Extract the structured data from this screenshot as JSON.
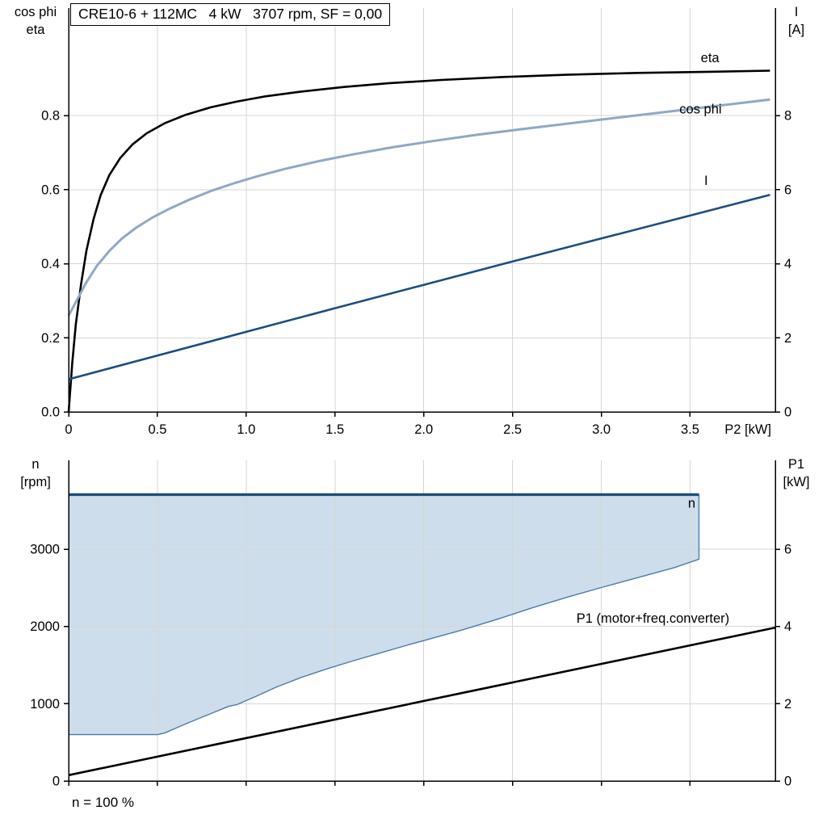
{
  "chart_data": [
    {
      "type": "line",
      "title": "CRE10-6 + 112MC   4 kW   3707 rpm, SF = 0,00",
      "grid": {
        "show": true,
        "color": "#d6d6d6"
      },
      "x_axis": {
        "label": "P2 [kW]",
        "min": 0,
        "max": 3.98,
        "ticks": [
          0,
          0.5,
          1,
          1.5,
          2,
          2.5,
          3,
          3.5
        ],
        "tick_labels": [
          "0",
          "0.5",
          "1.0",
          "1.5",
          "2.0",
          "2.5",
          "3.0",
          "3.5"
        ]
      },
      "y_left": {
        "label_lines": [
          "cos phi",
          "eta"
        ],
        "min": 0,
        "max": 1.09,
        "ticks": [
          0,
          0.2,
          0.4,
          0.6,
          0.8
        ],
        "tick_labels": [
          "0.0",
          "0.2",
          "0.4",
          "0.6",
          "0.8"
        ]
      },
      "y_right": {
        "label_lines": [
          "I",
          "[A]"
        ],
        "min": 0,
        "max": 10.9,
        "ticks": [
          0,
          2,
          4,
          6,
          8
        ],
        "tick_labels": [
          "0",
          "2",
          "4",
          "6",
          "8"
        ]
      },
      "series": [
        {
          "name": "eta",
          "axis": "left",
          "color": "#000000",
          "width": 2.6,
          "points": [
            [
              0,
              0
            ],
            [
              0.02,
              0.13
            ],
            [
              0.04,
              0.235
            ],
            [
              0.07,
              0.345
            ],
            [
              0.1,
              0.435
            ],
            [
              0.14,
              0.52
            ],
            [
              0.18,
              0.585
            ],
            [
              0.23,
              0.64
            ],
            [
              0.29,
              0.685
            ],
            [
              0.36,
              0.722
            ],
            [
              0.44,
              0.752
            ],
            [
              0.54,
              0.779
            ],
            [
              0.66,
              0.802
            ],
            [
              0.8,
              0.822
            ],
            [
              0.95,
              0.838
            ],
            [
              1.1,
              0.851
            ],
            [
              1.3,
              0.864
            ],
            [
              1.55,
              0.877
            ],
            [
              1.8,
              0.887
            ],
            [
              2.1,
              0.896
            ],
            [
              2.45,
              0.904
            ],
            [
              2.8,
              0.91
            ],
            [
              3.2,
              0.915
            ],
            [
              3.6,
              0.918
            ],
            [
              3.95,
              0.921
            ]
          ]
        },
        {
          "name": "cos phi",
          "axis": "left",
          "color": "#8fa9c4",
          "width": 3,
          "points": [
            [
              0,
              0.26
            ],
            [
              0.05,
              0.305
            ],
            [
              0.1,
              0.35
            ],
            [
              0.16,
              0.395
            ],
            [
              0.23,
              0.435
            ],
            [
              0.3,
              0.468
            ],
            [
              0.38,
              0.497
            ],
            [
              0.47,
              0.524
            ],
            [
              0.57,
              0.549
            ],
            [
              0.68,
              0.573
            ],
            [
              0.8,
              0.596
            ],
            [
              0.93,
              0.617
            ],
            [
              1.07,
              0.637
            ],
            [
              1.22,
              0.656
            ],
            [
              1.4,
              0.676
            ],
            [
              1.6,
              0.695
            ],
            [
              1.82,
              0.714
            ],
            [
              2.05,
              0.731
            ],
            [
              2.3,
              0.748
            ],
            [
              2.6,
              0.766
            ],
            [
              2.95,
              0.786
            ],
            [
              3.3,
              0.806
            ],
            [
              3.65,
              0.826
            ],
            [
              3.95,
              0.843
            ]
          ]
        },
        {
          "name": "I",
          "axis": "right",
          "color": "#1b4e7f",
          "width": 2.6,
          "points": [
            [
              0,
              0.88
            ],
            [
              0.5,
              1.52
            ],
            [
              1.0,
              2.16
            ],
            [
              1.5,
              2.8
            ],
            [
              2.0,
              3.43
            ],
            [
              2.5,
              4.06
            ],
            [
              3.0,
              4.68
            ],
            [
              3.5,
              5.3
            ],
            [
              3.95,
              5.86
            ]
          ]
        }
      ],
      "annotations": [
        {
          "text": "eta",
          "x": 3.56,
          "y": 0.944,
          "axis": "left",
          "color": "#000000",
          "anchor": "start"
        },
        {
          "text": "cos phi",
          "x": 3.44,
          "y": 0.806,
          "axis": "left",
          "color": "#8fa9c4",
          "anchor": "start"
        },
        {
          "text": "I",
          "x": 3.58,
          "y": 6.13,
          "axis": "right",
          "color": "#1b4e7f",
          "anchor": "start"
        }
      ]
    },
    {
      "type": "line",
      "footnote": "n = 100 %",
      "grid": {
        "show": true,
        "color": "#d6d6d6"
      },
      "x_axis": {
        "label": "",
        "min": 0,
        "max": 3.98,
        "ticks": [
          0,
          0.5,
          1,
          1.5,
          2,
          2.5,
          3,
          3.5
        ],
        "tick_labels": []
      },
      "y_left": {
        "label_lines": [
          "n",
          "[rpm]"
        ],
        "min": 0,
        "max": 4150,
        "ticks": [
          0,
          1000,
          2000,
          3000
        ],
        "tick_labels": [
          "0",
          "1000",
          "2000",
          "3000"
        ]
      },
      "y_right": {
        "label_lines": [
          "P1",
          "[kW]"
        ],
        "min": 0,
        "max": 8.3,
        "ticks": [
          0,
          2,
          4,
          6
        ],
        "tick_labels": [
          "0",
          "2",
          "4",
          "6"
        ]
      },
      "area": {
        "name": "speed-control-range",
        "fill": "#cdddeb",
        "edge_color": "#4a7cad",
        "upper_value": 3707,
        "x_start": 0,
        "x_end": 3.55,
        "lower_points": [
          [
            0,
            600
          ],
          [
            0.5,
            600
          ],
          [
            0.54,
            620
          ],
          [
            0.64,
            720
          ],
          [
            0.74,
            815
          ],
          [
            0.82,
            890
          ],
          [
            0.9,
            965
          ],
          [
            0.95,
            990
          ],
          [
            1.06,
            1100
          ],
          [
            1.17,
            1215
          ],
          [
            1.31,
            1340
          ],
          [
            1.46,
            1455
          ],
          [
            1.61,
            1560
          ],
          [
            1.76,
            1660
          ],
          [
            1.91,
            1760
          ],
          [
            2.06,
            1855
          ],
          [
            2.21,
            1950
          ],
          [
            2.41,
            2090
          ],
          [
            2.61,
            2240
          ],
          [
            2.81,
            2380
          ],
          [
            3.01,
            2510
          ],
          [
            3.21,
            2635
          ],
          [
            3.41,
            2760
          ],
          [
            3.55,
            2870
          ]
        ]
      },
      "series": [
        {
          "name": "n",
          "axis": "left",
          "color": "#1b4e7f",
          "width": 3.4,
          "points": [
            [
              0,
              3707
            ],
            [
              3.55,
              3707
            ]
          ]
        },
        {
          "name": "P1 (motor+freq.converter)",
          "axis": "right",
          "color": "#000000",
          "width": 2.6,
          "points": [
            [
              0,
              0.15
            ],
            [
              3.98,
              3.97
            ]
          ]
        }
      ],
      "annotations": [
        {
          "text": "n",
          "x": 3.53,
          "y": 3540,
          "axis": "left",
          "color": "#1b4e7f",
          "anchor": "end"
        },
        {
          "text": "P1 (motor+freq.converter)",
          "x": 2.86,
          "y": 4.1,
          "axis": "right",
          "color": "#000000",
          "anchor": "start"
        }
      ]
    }
  ]
}
